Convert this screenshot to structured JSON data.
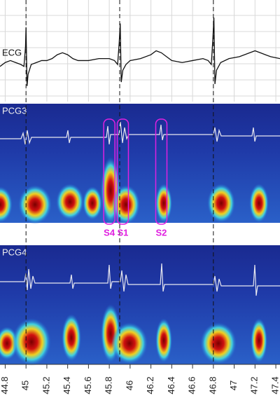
{
  "chart_data": {
    "type": "line",
    "panel_labels": [
      "ECG",
      "PCG3",
      "PCG4"
    ],
    "x": [
      44.75,
      44.8,
      44.85,
      44.9,
      44.95,
      44.98,
      44.995,
      45.0,
      45.01,
      45.02,
      45.05,
      45.1,
      45.15,
      45.2,
      45.25,
      45.3,
      45.35,
      45.4,
      45.45,
      45.5,
      45.6,
      45.7,
      45.8,
      45.85,
      45.88,
      45.895,
      45.905,
      45.915,
      45.93,
      45.96,
      46.0,
      46.1,
      46.2,
      46.25,
      46.3,
      46.35,
      46.4,
      46.5,
      46.6,
      46.7,
      46.75,
      46.78,
      46.795,
      46.805,
      46.815,
      46.83,
      46.87,
      46.95,
      47.05,
      47.15,
      47.2,
      47.25,
      47.3,
      47.35,
      47.44
    ],
    "series": [
      {
        "name": "ECG",
        "color": "#111111",
        "values": [
          -0.1,
          0.0,
          0.05,
          0.0,
          -0.05,
          -0.1,
          0.4,
          0.9,
          -0.6,
          -0.3,
          -0.05,
          0.0,
          0.05,
          0.05,
          0.1,
          0.2,
          0.25,
          0.2,
          0.1,
          0.05,
          0.05,
          0.1,
          0.1,
          0.05,
          -0.05,
          0.5,
          1.0,
          -0.5,
          -0.2,
          -0.05,
          0.05,
          0.1,
          0.2,
          0.3,
          0.25,
          0.15,
          0.05,
          0.0,
          0.05,
          0.1,
          0.05,
          -0.05,
          0.6,
          1.15,
          -0.55,
          -0.2,
          0.0,
          0.1,
          0.15,
          0.25,
          0.3,
          0.25,
          0.2,
          0.15,
          0.1
        ]
      }
    ],
    "xlim": [
      44.75,
      47.44
    ],
    "ylim": [
      -1,
      1.6
    ],
    "xticks": [
      44.8,
      45,
      45.2,
      45.4,
      45.6,
      45.8,
      46,
      46.2,
      46.4,
      46.6,
      46.8,
      47,
      47.2,
      47.4
    ],
    "grid": true,
    "markers": [
      45.0,
      45.9,
      46.8
    ],
    "annotations": [
      {
        "label": "S4",
        "x": 45.8
      },
      {
        "label": "S1",
        "x": 45.93
      },
      {
        "label": "S2",
        "x": 46.3
      }
    ],
    "annotation_color": "#e020e0"
  }
}
